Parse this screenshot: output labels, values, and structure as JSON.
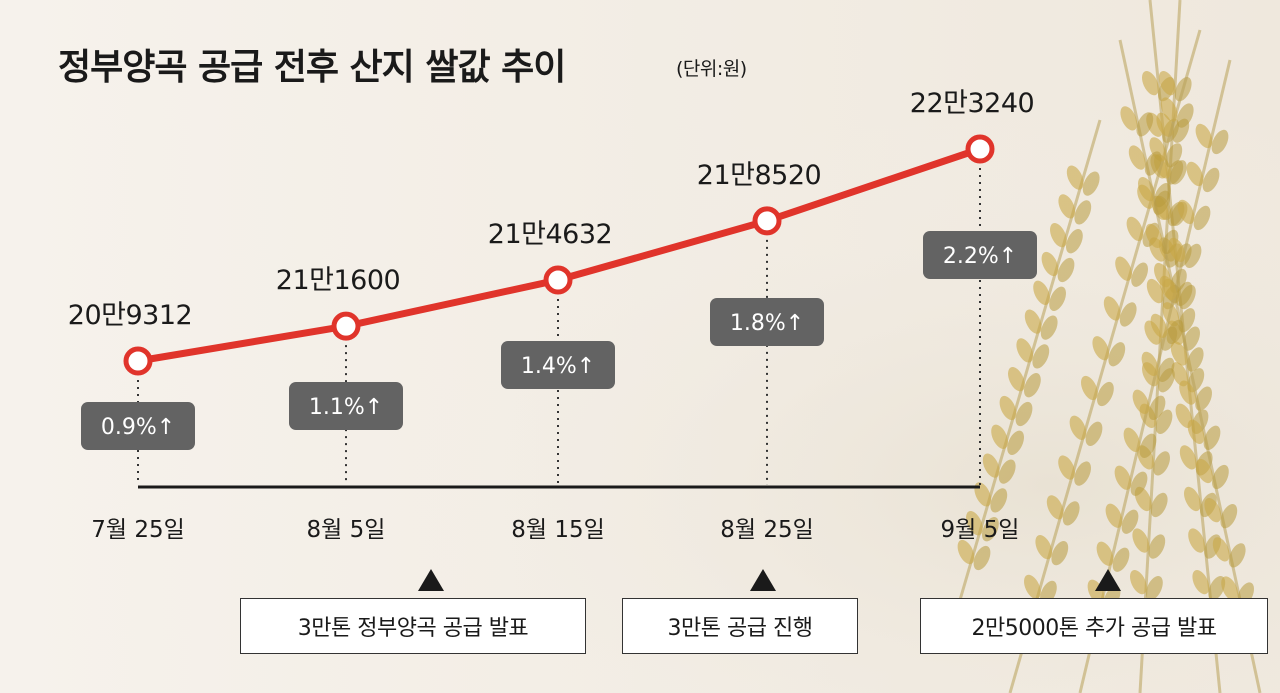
{
  "title": "정부양곡 공급 전후 산지 쌀값 추이",
  "unit": "(단위:원)",
  "chart_data": {
    "type": "line",
    "x": [
      "7월 25일",
      "8월 5일",
      "8월 15일",
      "8월 25일",
      "9월 5일"
    ],
    "values": [
      209312,
      211600,
      214632,
      218520,
      223240
    ],
    "value_labels": [
      "20만9312",
      "21만1600",
      "21만4632",
      "21만8520",
      "22만3240"
    ],
    "pct_labels": [
      "0.9%↑",
      "1.1%↑",
      "1.4%↑",
      "1.8%↑",
      "2.2%↑"
    ],
    "colors": {
      "line": "#e0342b",
      "badge": "#636363"
    }
  },
  "events": [
    {
      "label": "3만톤 정부양곡 공급 발표"
    },
    {
      "label": "3만톤 공급 진행"
    },
    {
      "label": "2만5000톤 추가 공급 발표"
    }
  ]
}
